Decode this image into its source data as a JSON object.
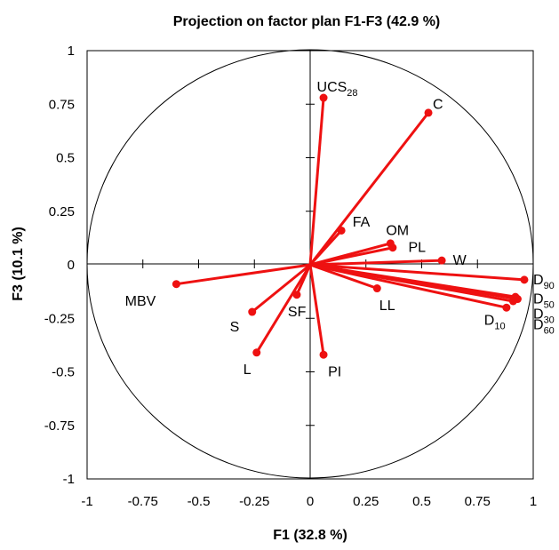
{
  "chart_data": {
    "type": "scatter",
    "title": "Projection on factor plan F1-F3 (42.9 %)",
    "xlabel": "F1 (32.8 %)",
    "ylabel": "F3 (10.1 %)",
    "xlim": [
      -1,
      1
    ],
    "ylim": [
      -1,
      1
    ],
    "xticks": [
      "-1",
      "-0.75",
      "-0.5",
      "-0.25",
      "0",
      "0.25",
      "0.5",
      "0.75",
      "1"
    ],
    "yticks": [
      "1",
      "0.75",
      "0.5",
      "0.25",
      "0",
      "-0.25",
      "-0.5",
      "-0.75",
      "-1"
    ],
    "correlation_circle": true,
    "vector_color": "#ee1111",
    "variables": [
      {
        "base": "UCS",
        "sub": "28",
        "x": 0.06,
        "y": 0.78,
        "anchor": "start",
        "ldx": -0.03,
        "ldy": 0.05
      },
      {
        "base": "C",
        "sub": "",
        "x": 0.53,
        "y": 0.71,
        "anchor": "start",
        "ldx": 0.02,
        "ldy": 0.04
      },
      {
        "base": "FA",
        "sub": "",
        "x": 0.14,
        "y": 0.16,
        "anchor": "start",
        "ldx": 0.05,
        "ldy": 0.04
      },
      {
        "base": "OM",
        "sub": "",
        "x": 0.36,
        "y": 0.1,
        "anchor": "start",
        "ldx": -0.02,
        "ldy": 0.06
      },
      {
        "base": "PL",
        "sub": "",
        "x": 0.37,
        "y": 0.08,
        "anchor": "start",
        "ldx": 0.07,
        "ldy": 0.0
      },
      {
        "base": "W",
        "sub": "",
        "x": 0.59,
        "y": 0.02,
        "anchor": "start",
        "ldx": 0.05,
        "ldy": 0.0
      },
      {
        "base": "D",
        "sub": "90",
        "x": 0.96,
        "y": -0.07,
        "anchor": "start",
        "ldx": 0.04,
        "ldy": 0.0
      },
      {
        "base": "D",
        "sub": "50",
        "x": 0.92,
        "y": -0.15,
        "anchor": "start",
        "ldx": 0.08,
        "ldy": -0.01
      },
      {
        "base": "D",
        "sub": "30",
        "x": 0.93,
        "y": -0.16,
        "anchor": "start",
        "ldx": 0.07,
        "ldy": -0.07
      },
      {
        "base": "D",
        "sub": "60",
        "x": 0.91,
        "y": -0.17,
        "anchor": "start",
        "ldx": 0.09,
        "ldy": -0.11
      },
      {
        "base": "D",
        "sub": "10",
        "x": 0.88,
        "y": -0.2,
        "anchor": "start",
        "ldx": -0.1,
        "ldy": -0.06
      },
      {
        "base": "LL",
        "sub": "",
        "x": 0.3,
        "y": -0.11,
        "anchor": "start",
        "ldx": 0.01,
        "ldy": -0.08
      },
      {
        "base": "MBV",
        "sub": "",
        "x": -0.6,
        "y": -0.09,
        "anchor": "start",
        "ldx": -0.23,
        "ldy": -0.08
      },
      {
        "base": "S",
        "sub": "",
        "x": -0.26,
        "y": -0.22,
        "anchor": "start",
        "ldx": -0.1,
        "ldy": -0.07
      },
      {
        "base": "SF",
        "sub": "",
        "x": -0.06,
        "y": -0.14,
        "anchor": "start",
        "ldx": -0.04,
        "ldy": -0.08
      },
      {
        "base": "L",
        "sub": "",
        "x": -0.24,
        "y": -0.41,
        "anchor": "start",
        "ldx": -0.06,
        "ldy": -0.08
      },
      {
        "base": "PI",
        "sub": "",
        "x": 0.06,
        "y": -0.42,
        "anchor": "start",
        "ldx": 0.02,
        "ldy": -0.08
      }
    ]
  }
}
